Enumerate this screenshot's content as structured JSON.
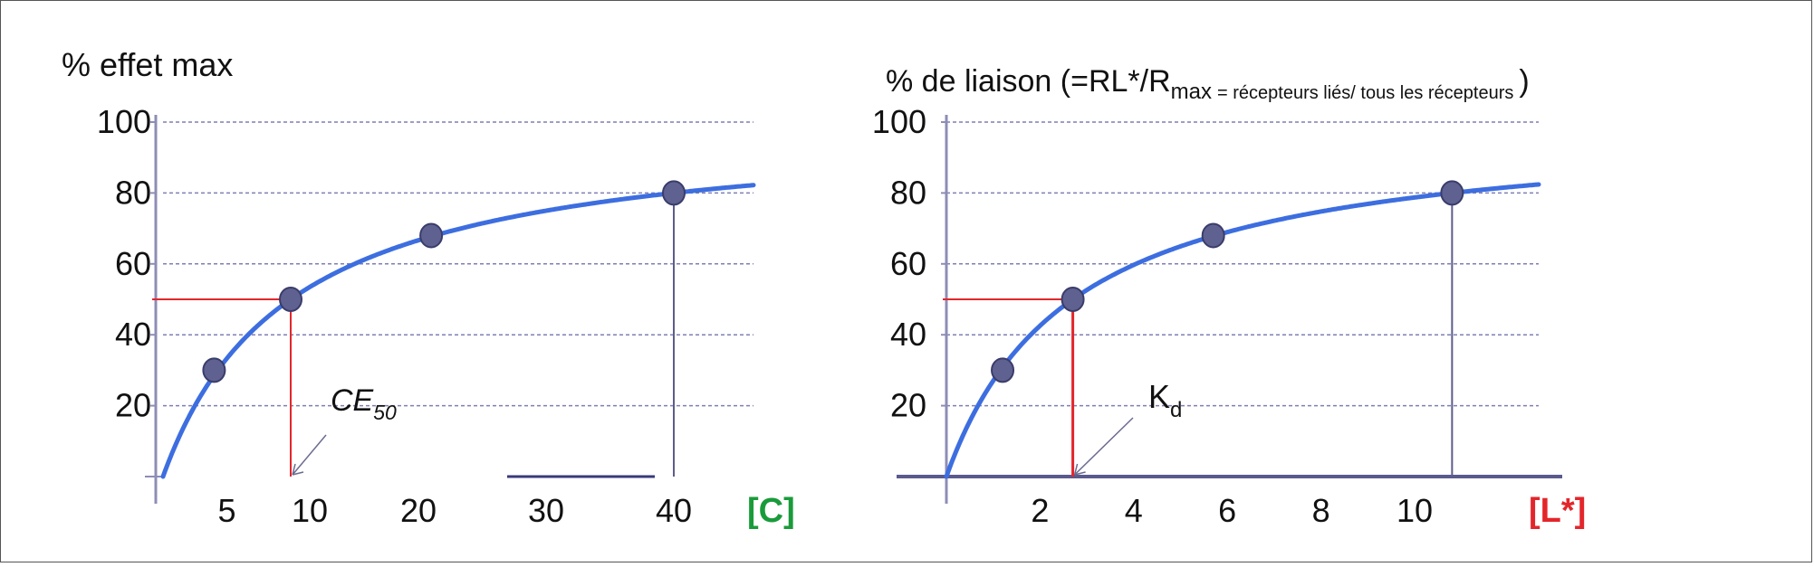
{
  "colors": {
    "curve": "#3d6ee0",
    "point": "#5f6190",
    "point_stroke": "#3a3c6a",
    "grid": "#7f7fb4",
    "axis": "#8d8db6",
    "red": "#e3262b",
    "green": "#1a9b3a",
    "arrow": "#6b6b8f",
    "text": "#111111"
  },
  "chart_data": [
    {
      "type": "line",
      "title": "% effet max",
      "xlabel": "[C]",
      "xlabel_color": "green",
      "xticks": [
        5,
        10,
        20,
        30,
        40
      ],
      "xtick_labels": [
        "5",
        "10",
        "20",
        "30",
        "40"
      ],
      "yticks": [
        20,
        40,
        60,
        80,
        100
      ],
      "ytick_labels": [
        "20",
        "40",
        "60",
        "80",
        "100"
      ],
      "xlim": [
        0,
        47
      ],
      "ylim": [
        0,
        100
      ],
      "grid": true,
      "curve": {
        "equation": "y = 100*x/(x+10)"
      },
      "points": [
        {
          "x": 4,
          "y": 30
        },
        {
          "x": 10,
          "y": 50
        },
        {
          "x": 21,
          "y": 68
        },
        {
          "x": 40,
          "y": 80
        }
      ],
      "marker": {
        "x": 10,
        "y": 50
      },
      "vertical_line_at": 40,
      "annotation": {
        "label": "CE",
        "subscript": "50",
        "points_to": [
          10,
          0
        ]
      }
    },
    {
      "type": "line",
      "title": "% de liaison (=RL*/R",
      "title_sub": "max",
      "title_rest": "= récepteurs liés/ tous les récepteurs",
      "title_close": ")",
      "xlabel": "[L*]",
      "xlabel_color": "red",
      "xticks": [
        2,
        4,
        6,
        8,
        10
      ],
      "xtick_labels": [
        "2",
        "4",
        "6",
        "8",
        "10"
      ],
      "yticks": [
        20,
        40,
        60,
        80,
        100
      ],
      "ytick_labels": [
        "20",
        "40",
        "60",
        "80",
        "100"
      ],
      "xlim": [
        0,
        12.6
      ],
      "ylim": [
        0,
        100
      ],
      "grid": true,
      "curve": {
        "equation": "y = 100*x/(x+2.7)"
      },
      "points": [
        {
          "x": 1.2,
          "y": 30
        },
        {
          "x": 2.7,
          "y": 50
        },
        {
          "x": 5.7,
          "y": 68
        },
        {
          "x": 10.8,
          "y": 80
        }
      ],
      "marker": {
        "x": 2.7,
        "y": 50
      },
      "vertical_line_at": 10.8,
      "annotation": {
        "label": "K",
        "subscript": "d",
        "points_to": [
          2.7,
          0
        ]
      }
    }
  ]
}
